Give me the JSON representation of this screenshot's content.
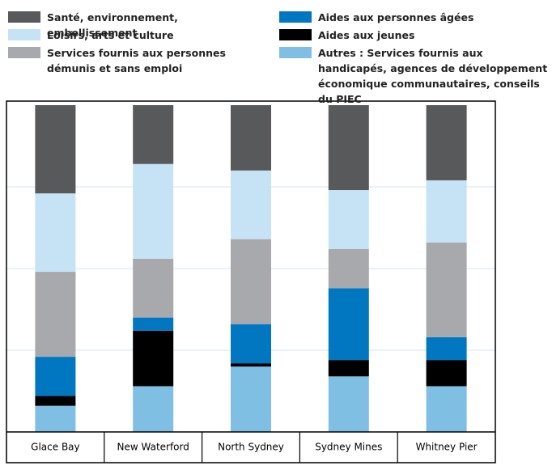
{
  "chart_data": {
    "type": "stacked_bar_100",
    "categories": [
      "Glace Bay",
      "New Waterford",
      "North Sydney",
      "Sydney Mines",
      "Whitney Pier"
    ],
    "series": [
      {
        "name": "Santé, environnement, embellissement",
        "color": "#58595b",
        "values": [
          27,
          18,
          20,
          26,
          23
        ]
      },
      {
        "name": "Loisirs, arts et culture",
        "color": "#c6e3f5",
        "values": [
          24,
          29,
          21,
          18,
          19
        ]
      },
      {
        "name": "Services fournis aux personnes démunis et sans emploi",
        "color": "#a7a9ac",
        "values": [
          26,
          18,
          26,
          12,
          29
        ]
      },
      {
        "name": "Aides aux personnes âgées",
        "color": "#0077c0",
        "values": [
          12,
          4,
          12,
          22,
          7
        ]
      },
      {
        "name": "Aides aux jeunes",
        "color": "#000000",
        "values": [
          3,
          17,
          1,
          5,
          8
        ]
      },
      {
        "name": "Autres : Services fournis aux handicapés, agences de développement économique communautaires, conseils du PIEC",
        "color": "#7fbfe3",
        "values": [
          8,
          14,
          20,
          17,
          14
        ]
      }
    ],
    "ylim": [
      0,
      100
    ],
    "yticks": [
      25,
      50,
      75
    ],
    "grid": true
  }
}
